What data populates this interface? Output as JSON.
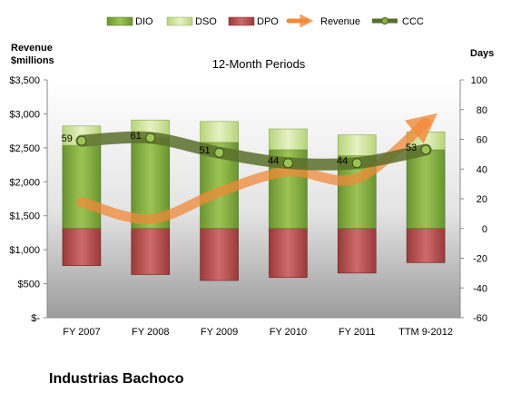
{
  "chart_data": {
    "type": "bar",
    "subtitle": "12-Month Periods",
    "footer_title": "Industrias Bachoco",
    "left_axis_title_line1": "Revenue",
    "left_axis_title_line2": "$millions",
    "right_axis_title": "Days",
    "categories": [
      "FY 2007",
      "FY 2008",
      "FY 2009",
      "FY 2010",
      "FY 2011",
      "TTM 9-2012"
    ],
    "left_ticks": [
      "$-",
      "$500",
      "$1,000",
      "$1,500",
      "$2,000",
      "$2,500",
      "$3,000",
      "$3,500"
    ],
    "right_ticks": [
      "-60",
      "-40",
      "-20",
      "0",
      "20",
      "40",
      "60",
      "80",
      "100"
    ],
    "ylim_left": [
      0,
      3500
    ],
    "ylim_right": [
      -60,
      100
    ],
    "series": [
      {
        "name": "DIO",
        "kind": "stacked-bar",
        "axis": "right",
        "color": "#7ba33a",
        "values": [
          56,
          61,
          58,
          53,
          49,
          53
        ]
      },
      {
        "name": "DSO",
        "kind": "stacked-bar",
        "axis": "right",
        "color": "#c9e08f",
        "values": [
          13,
          12,
          14,
          14,
          14,
          12
        ]
      },
      {
        "name": "DPO",
        "kind": "negative-bar",
        "axis": "right",
        "color": "#b34a4a",
        "values": [
          -25,
          -31,
          -35,
          -33,
          -30,
          -23
        ]
      },
      {
        "name": "Revenue",
        "kind": "line",
        "axis": "left",
        "color": "#f08a3a",
        "values": [
          1700,
          1450,
          1850,
          2150,
          2050,
          2870
        ]
      },
      {
        "name": "CCC",
        "kind": "line",
        "axis": "right",
        "color": "#5a6e2c",
        "values": [
          59,
          61,
          51,
          44,
          44,
          53
        ]
      }
    ],
    "ccc_labels": [
      "59",
      "61",
      "51",
      "44",
      "44",
      "53"
    ],
    "legend_position": "top",
    "grid": false
  }
}
